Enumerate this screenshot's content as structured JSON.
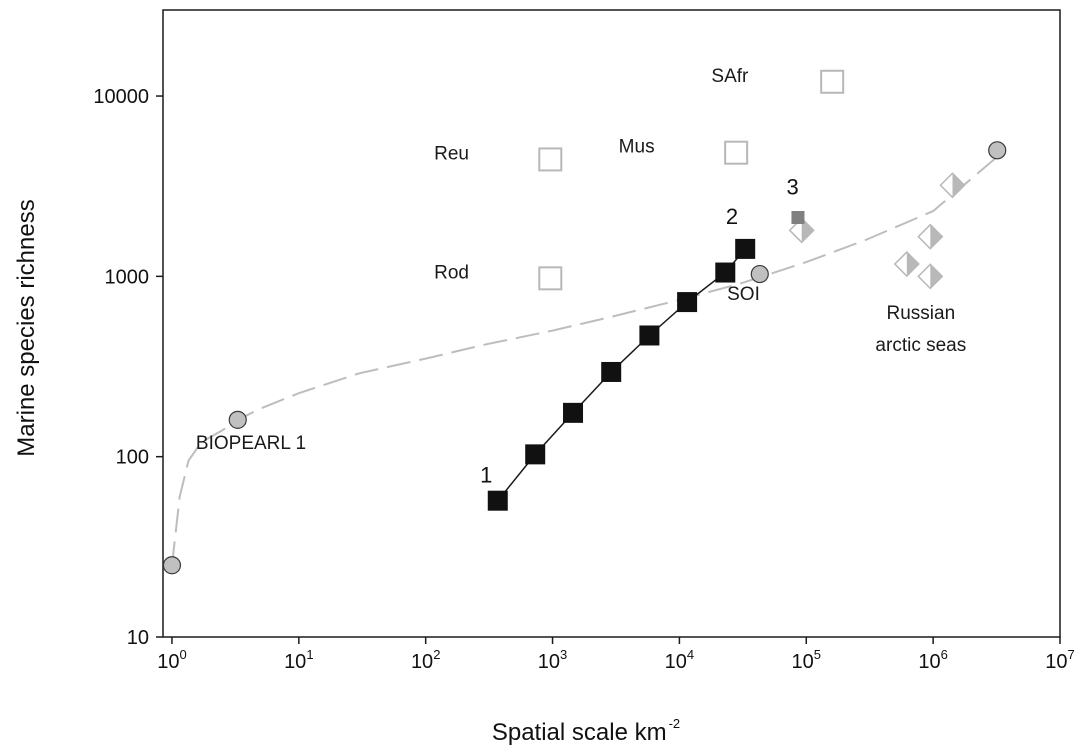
{
  "chart_data": {
    "type": "scatter",
    "title": "",
    "xlabel": "Spatial scale km",
    "xlabel_sup": "-2",
    "ylabel": "Marine species richness",
    "x_scale": "log",
    "y_scale": "log",
    "xlim": [
      0.85,
      10000000
    ],
    "ylim": [
      10,
      30000
    ],
    "x_ticks": [
      {
        "value": 1,
        "base": "10",
        "exp": "0"
      },
      {
        "value": 10,
        "base": "10",
        "exp": "1"
      },
      {
        "value": 100,
        "base": "10",
        "exp": "2"
      },
      {
        "value": 1000,
        "base": "10",
        "exp": "3"
      },
      {
        "value": 10000,
        "base": "10",
        "exp": "4"
      },
      {
        "value": 100000,
        "base": "10",
        "exp": "5"
      },
      {
        "value": 1000000,
        "base": "10",
        "exp": "6"
      },
      {
        "value": 10000000,
        "base": "10",
        "exp": "7"
      }
    ],
    "y_ticks": [
      {
        "value": 10,
        "label": "10"
      },
      {
        "value": 100,
        "label": "100"
      },
      {
        "value": 1000,
        "label": "1000"
      },
      {
        "value": 10000,
        "label": "10000"
      }
    ],
    "grid": false,
    "series": [
      {
        "marker": "filled-square",
        "color": "#111111",
        "connected": true,
        "points": [
          {
            "x": 370,
            "y": 57
          },
          {
            "x": 730,
            "y": 103
          },
          {
            "x": 1450,
            "y": 175
          },
          {
            "x": 2900,
            "y": 295
          },
          {
            "x": 5800,
            "y": 470
          },
          {
            "x": 11500,
            "y": 720
          },
          {
            "x": 23000,
            "y": 1050
          },
          {
            "x": 33000,
            "y": 1420
          }
        ]
      },
      {
        "marker": "grey-circle",
        "color": "#c0c0c0",
        "connected": false,
        "points": [
          {
            "x": 1,
            "y": 25
          },
          {
            "x": 3.3,
            "y": 160
          },
          {
            "x": 43000,
            "y": 1030
          },
          {
            "x": 3200000,
            "y": 5000
          }
        ]
      },
      {
        "marker": "open-square",
        "color": "#b8b8b8",
        "connected": false,
        "points": [
          {
            "x": 960,
            "y": 4450
          },
          {
            "x": 960,
            "y": 975
          },
          {
            "x": 28000,
            "y": 4850
          },
          {
            "x": 160000,
            "y": 12000
          }
        ]
      },
      {
        "marker": "half-diamond",
        "color": "#b8b8b8",
        "connected": false,
        "points": [
          {
            "x": 92000,
            "y": 1800
          },
          {
            "x": 620000,
            "y": 1170
          },
          {
            "x": 950000,
            "y": 1660
          },
          {
            "x": 950000,
            "y": 1000
          },
          {
            "x": 1420000,
            "y": 3200
          }
        ]
      },
      {
        "marker": "small-grey-square",
        "color": "#808080",
        "connected": false,
        "points": [
          {
            "x": 86000,
            "y": 2120
          }
        ]
      }
    ],
    "fit_line": {
      "style": "dashed",
      "color": "#bdbdbd",
      "x": [
        1,
        1.15,
        1.35,
        1.7,
        2.5,
        3.3,
        5,
        10,
        30,
        100,
        300,
        1000,
        3000,
        10000,
        30000,
        100000,
        300000,
        1000000,
        3200000
      ],
      "y": [
        25,
        60,
        95,
        120,
        140,
        160,
        185,
        225,
        290,
        350,
        420,
        500,
        600,
        740,
        910,
        1200,
        1600,
        2300,
        4600
      ]
    },
    "annotations": [
      {
        "text": "1",
        "x": 300,
        "y": 72,
        "kind": "num"
      },
      {
        "text": "2",
        "x": 26000,
        "y": 1950,
        "kind": "num"
      },
      {
        "text": "3",
        "x": 78000,
        "y": 2850,
        "kind": "num-grey"
      },
      {
        "text": "Reu",
        "x": 160,
        "y": 4450,
        "kind": "label"
      },
      {
        "text": "Rod",
        "x": 160,
        "y": 975,
        "kind": "label"
      },
      {
        "text": "Mus",
        "x": 4600,
        "y": 4850,
        "kind": "label"
      },
      {
        "text": "SAfr",
        "x": 25000,
        "y": 12000,
        "kind": "label"
      },
      {
        "text": "SOI",
        "x": 32000,
        "y": 740,
        "kind": "label"
      },
      {
        "text": "BIOPEARL 1",
        "x": 4.2,
        "y": 110,
        "kind": "label"
      },
      {
        "text": "Russian",
        "x": 800000,
        "y": 580,
        "kind": "label"
      },
      {
        "text": "arctic seas",
        "x": 800000,
        "y": 385,
        "kind": "label"
      }
    ]
  }
}
